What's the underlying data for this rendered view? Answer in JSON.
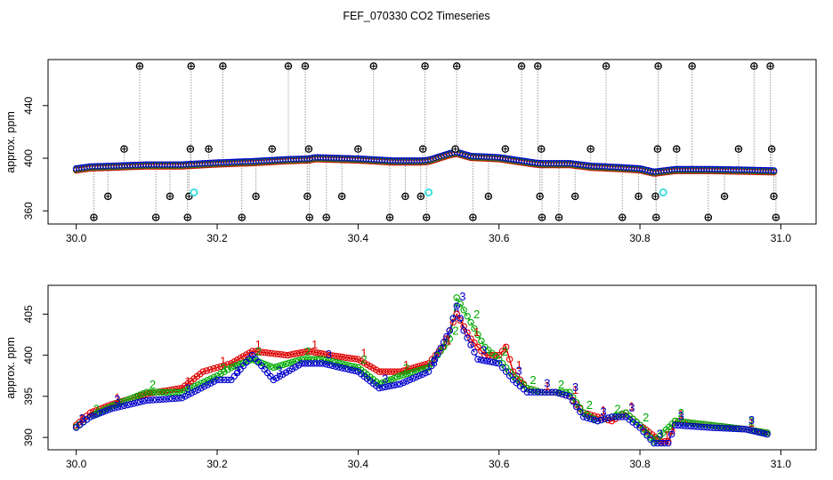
{
  "figure": {
    "title": "FEF_070330  CO2 Timeseries",
    "colors": {
      "outlier": "#000000",
      "flagged": "#33dddd",
      "series1": "#dd0000",
      "series2": "#00aa00",
      "series3": "#0000cc",
      "connector": "#999999"
    }
  },
  "chart_data": [
    {
      "type": "scatter",
      "panel": "top",
      "title": "",
      "xlabel": "",
      "ylabel": "approx. ppm",
      "xlim": [
        29.96,
        31.05
      ],
      "ylim": [
        350,
        475
      ],
      "xticks": [
        "30.0",
        "30.2",
        "30.4",
        "30.6",
        "30.8",
        "31.0"
      ],
      "yticks": [
        "360",
        "400",
        "440"
      ],
      "grid": false,
      "baseline_profile": [
        [
          30.0,
          391.5
        ],
        [
          30.02,
          393
        ],
        [
          30.05,
          393.5
        ],
        [
          30.1,
          394.5
        ],
        [
          30.15,
          394.5
        ],
        [
          30.2,
          396
        ],
        [
          30.25,
          397
        ],
        [
          30.3,
          398.5
        ],
        [
          30.33,
          399
        ],
        [
          30.34,
          400
        ],
        [
          30.4,
          399
        ],
        [
          30.45,
          397.5
        ],
        [
          30.49,
          397.5
        ],
        [
          30.5,
          398
        ],
        [
          30.53,
          403
        ],
        [
          30.54,
          404
        ],
        [
          30.56,
          401
        ],
        [
          30.6,
          400
        ],
        [
          30.65,
          396
        ],
        [
          30.66,
          395.5
        ],
        [
          30.7,
          395.5
        ],
        [
          30.73,
          393.5
        ],
        [
          30.77,
          392.5
        ],
        [
          30.8,
          391.5
        ],
        [
          30.82,
          389
        ],
        [
          30.85,
          391
        ],
        [
          30.9,
          391
        ],
        [
          30.95,
          390.5
        ],
        [
          30.99,
          390
        ]
      ],
      "outliers": [
        {
          "x": 30.025,
          "y": 355
        },
        {
          "x": 30.045,
          "y": 371
        },
        {
          "x": 30.068,
          "y": 407
        },
        {
          "x": 30.09,
          "y": 470
        },
        {
          "x": 30.113,
          "y": 355
        },
        {
          "x": 30.133,
          "y": 371
        },
        {
          "x": 30.158,
          "y": 355
        },
        {
          "x": 30.16,
          "y": 371
        },
        {
          "x": 30.162,
          "y": 407
        },
        {
          "x": 30.163,
          "y": 470
        },
        {
          "x": 30.188,
          "y": 407
        },
        {
          "x": 30.208,
          "y": 470
        },
        {
          "x": 30.235,
          "y": 355
        },
        {
          "x": 30.255,
          "y": 371
        },
        {
          "x": 30.278,
          "y": 407
        },
        {
          "x": 30.301,
          "y": 470
        },
        {
          "x": 30.325,
          "y": 470
        },
        {
          "x": 30.328,
          "y": 371
        },
        {
          "x": 30.331,
          "y": 355
        },
        {
          "x": 30.33,
          "y": 407
        },
        {
          "x": 30.355,
          "y": 355
        },
        {
          "x": 30.377,
          "y": 371
        },
        {
          "x": 30.4,
          "y": 407
        },
        {
          "x": 30.422,
          "y": 470
        },
        {
          "x": 30.445,
          "y": 355
        },
        {
          "x": 30.467,
          "y": 371
        },
        {
          "x": 30.489,
          "y": 371
        },
        {
          "x": 30.492,
          "y": 407
        },
        {
          "x": 30.495,
          "y": 470
        },
        {
          "x": 30.497,
          "y": 355
        },
        {
          "x": 30.538,
          "y": 407
        },
        {
          "x": 30.54,
          "y": 470
        },
        {
          "x": 30.563,
          "y": 355
        },
        {
          "x": 30.585,
          "y": 371
        },
        {
          "x": 30.609,
          "y": 407
        },
        {
          "x": 30.632,
          "y": 470
        },
        {
          "x": 30.655,
          "y": 470
        },
        {
          "x": 30.658,
          "y": 371
        },
        {
          "x": 30.661,
          "y": 355
        },
        {
          "x": 30.66,
          "y": 407
        },
        {
          "x": 30.685,
          "y": 355
        },
        {
          "x": 30.708,
          "y": 371
        },
        {
          "x": 30.73,
          "y": 407
        },
        {
          "x": 30.752,
          "y": 470
        },
        {
          "x": 30.775,
          "y": 355
        },
        {
          "x": 30.798,
          "y": 371
        },
        {
          "x": 30.822,
          "y": 371
        },
        {
          "x": 30.823,
          "y": 355
        },
        {
          "x": 30.825,
          "y": 407
        },
        {
          "x": 30.826,
          "y": 470
        },
        {
          "x": 30.852,
          "y": 407
        },
        {
          "x": 30.874,
          "y": 470
        },
        {
          "x": 30.897,
          "y": 355
        },
        {
          "x": 30.92,
          "y": 371
        },
        {
          "x": 30.94,
          "y": 407
        },
        {
          "x": 30.962,
          "y": 470
        },
        {
          "x": 30.985,
          "y": 470
        },
        {
          "x": 30.987,
          "y": 407
        },
        {
          "x": 30.99,
          "y": 371
        },
        {
          "x": 30.993,
          "y": 355
        }
      ],
      "flagged": [
        {
          "x": 30.167,
          "y": 374
        },
        {
          "x": 30.5,
          "y": 374
        },
        {
          "x": 30.833,
          "y": 374
        }
      ]
    },
    {
      "type": "line",
      "panel": "bottom",
      "title": "",
      "xlabel": "",
      "ylabel": "approx. ppm",
      "xlim": [
        29.96,
        31.05
      ],
      "ylim": [
        388.5,
        408.5
      ],
      "xticks": [
        "30.0",
        "30.2",
        "30.4",
        "30.6",
        "30.8",
        "31.0"
      ],
      "yticks": [
        "390",
        "395",
        "400",
        "405"
      ],
      "grid": false,
      "series": [
        {
          "marker": "1",
          "values": [
            [
              30.0,
              391.5
            ],
            [
              30.02,
              393
            ],
            [
              30.05,
              394
            ],
            [
              30.1,
              395.3
            ],
            [
              30.15,
              396
            ],
            [
              30.18,
              398
            ],
            [
              30.2,
              398.5
            ],
            [
              30.22,
              399
            ],
            [
              30.25,
              400.5
            ],
            [
              30.3,
              400
            ],
            [
              30.33,
              400.5
            ],
            [
              30.36,
              400
            ],
            [
              30.4,
              399.5
            ],
            [
              30.43,
              398
            ],
            [
              30.46,
              398
            ],
            [
              30.5,
              399
            ],
            [
              30.52,
              401
            ],
            [
              30.54,
              405
            ],
            [
              30.56,
              402
            ],
            [
              30.58,
              400
            ],
            [
              30.6,
              400
            ],
            [
              30.61,
              401
            ],
            [
              30.62,
              398
            ],
            [
              30.64,
              396
            ],
            [
              30.66,
              395.5
            ],
            [
              30.68,
              395.5
            ],
            [
              30.7,
              395
            ],
            [
              30.72,
              393
            ],
            [
              30.74,
              392.5
            ],
            [
              30.76,
              392
            ],
            [
              30.78,
              393
            ],
            [
              30.8,
              391.5
            ],
            [
              30.83,
              389.5
            ],
            [
              30.84,
              389.5
            ],
            [
              30.85,
              392
            ],
            [
              30.9,
              391.5
            ],
            [
              30.95,
              391
            ],
            [
              30.985,
              390.5
            ]
          ]
        },
        {
          "marker": "2",
          "values": [
            [
              30.0,
              391.3
            ],
            [
              30.02,
              392.5
            ],
            [
              30.05,
              393.8
            ],
            [
              30.1,
              395.5
            ],
            [
              30.15,
              395.5
            ],
            [
              30.2,
              397.5
            ],
            [
              30.22,
              398.5
            ],
            [
              30.25,
              399.5
            ],
            [
              30.28,
              398.5
            ],
            [
              30.32,
              399.5
            ],
            [
              30.35,
              399.5
            ],
            [
              30.4,
              398.5
            ],
            [
              30.43,
              396.5
            ],
            [
              30.46,
              397.5
            ],
            [
              30.5,
              398.5
            ],
            [
              30.53,
              402
            ],
            [
              30.54,
              407
            ],
            [
              30.56,
              404
            ],
            [
              30.58,
              401
            ],
            [
              30.6,
              399.5
            ],
            [
              30.62,
              397.5
            ],
            [
              30.64,
              396
            ],
            [
              30.66,
              395.5
            ],
            [
              30.68,
              395.5
            ],
            [
              30.7,
              395.5
            ],
            [
              30.72,
              393
            ],
            [
              30.74,
              392
            ],
            [
              30.76,
              392.5
            ],
            [
              30.78,
              393
            ],
            [
              30.8,
              391.5
            ],
            [
              30.82,
              389.5
            ],
            [
              30.85,
              392
            ],
            [
              30.9,
              391.5
            ],
            [
              30.95,
              391
            ],
            [
              30.985,
              390.5
            ]
          ]
        },
        {
          "marker": "3",
          "values": [
            [
              30.0,
              391.2
            ],
            [
              30.02,
              392.5
            ],
            [
              30.05,
              393.5
            ],
            [
              30.1,
              394.5
            ],
            [
              30.15,
              394.8
            ],
            [
              30.2,
              397
            ],
            [
              30.22,
              397
            ],
            [
              30.25,
              400
            ],
            [
              30.28,
              397
            ],
            [
              30.32,
              399
            ],
            [
              30.35,
              399
            ],
            [
              30.4,
              398
            ],
            [
              30.43,
              396
            ],
            [
              30.46,
              396.5
            ],
            [
              30.5,
              398
            ],
            [
              30.53,
              403
            ],
            [
              30.54,
              406
            ],
            [
              30.55,
              403
            ],
            [
              30.57,
              399.5
            ],
            [
              30.6,
              399
            ],
            [
              30.62,
              397
            ],
            [
              30.64,
              395.5
            ],
            [
              30.66,
              395.5
            ],
            [
              30.68,
              395.5
            ],
            [
              30.7,
              395
            ],
            [
              30.72,
              392.5
            ],
            [
              30.74,
              392
            ],
            [
              30.76,
              392.5
            ],
            [
              30.78,
              392.5
            ],
            [
              30.8,
              391.2
            ],
            [
              30.82,
              389.3
            ],
            [
              30.84,
              389.3
            ],
            [
              30.85,
              391.5
            ],
            [
              30.9,
              391.2
            ],
            [
              30.95,
              391
            ],
            [
              30.985,
              390.3
            ]
          ]
        }
      ]
    }
  ]
}
